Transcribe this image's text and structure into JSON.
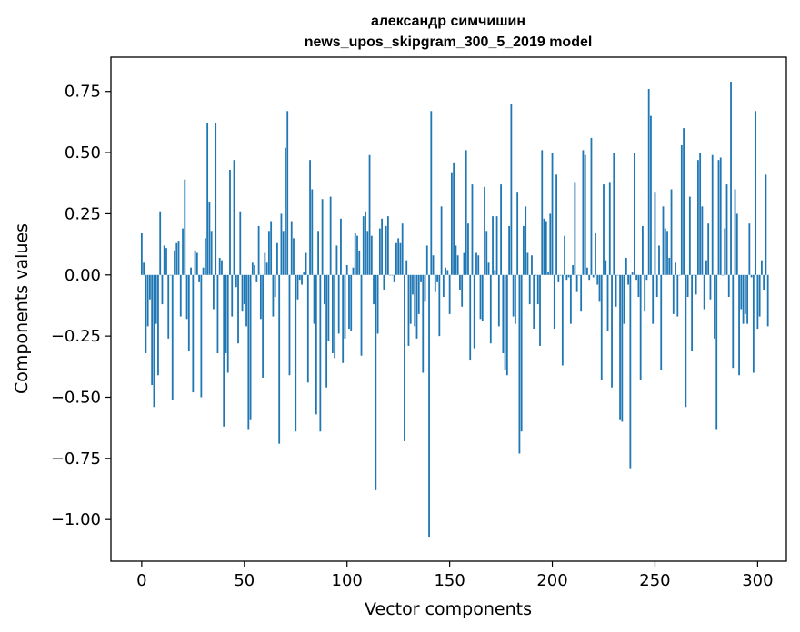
{
  "chart_data": {
    "type": "bar",
    "title": "александр симчишин",
    "subtitle": "news_upos_skipgram_300_5_2019 model",
    "xlabel": "Vector components",
    "ylabel": "Components values",
    "xlim": [
      -15,
      314
    ],
    "ylim": [
      -1.17,
      0.89
    ],
    "xticks": [
      0,
      50,
      100,
      150,
      200,
      250,
      300
    ],
    "yticks": [
      0.75,
      0.5,
      0.25,
      0.0,
      -0.25,
      -0.5,
      -0.75,
      -1.0
    ],
    "ytick_labels": [
      "0.75",
      "0.50",
      "0.25",
      "0.00",
      "−0.25",
      "−0.50",
      "−0.75",
      "−1.00"
    ],
    "xtick_labels": [
      "0",
      "50",
      "100",
      "150",
      "200",
      "250",
      "300"
    ],
    "bar_color": "#1f77b4",
    "values": [
      0.17,
      0.05,
      -0.32,
      -0.21,
      -0.1,
      -0.45,
      -0.54,
      -0.2,
      -0.41,
      0.26,
      -0.12,
      0.12,
      0.11,
      -0.26,
      0.0,
      -0.51,
      0.1,
      0.13,
      0.14,
      -0.17,
      0.19,
      0.39,
      -0.18,
      -0.31,
      0.03,
      -0.48,
      0.1,
      0.09,
      -0.03,
      -0.5,
      0.03,
      0.15,
      0.62,
      0.3,
      0.18,
      -0.14,
      0.62,
      -0.32,
      0.07,
      0.06,
      -0.62,
      -0.32,
      -0.4,
      0.43,
      -0.17,
      0.47,
      -0.05,
      -0.28,
      0.26,
      -0.15,
      -0.12,
      -0.21,
      -0.63,
      -0.59,
      0.05,
      0.04,
      -0.03,
      0.2,
      -0.18,
      -0.42,
      0.09,
      0.05,
      0.18,
      0.22,
      -0.17,
      -0.09,
      0.13,
      -0.69,
      0.25,
      0.18,
      0.52,
      0.67,
      -0.41,
      0.22,
      0.15,
      -0.64,
      -0.1,
      -0.02,
      -0.04,
      0.01,
      0.09,
      -0.44,
      0.47,
      0.35,
      -0.2,
      -0.57,
      0.18,
      -0.64,
      0.31,
      -0.12,
      -0.46,
      -0.27,
      0.32,
      -0.32,
      -0.34,
      0.12,
      -0.24,
      0.23,
      -0.36,
      -0.26,
      0.04,
      -0.22,
      -0.23,
      0.03,
      0.17,
      0.16,
      0.1,
      -0.33,
      0.24,
      0.26,
      0.18,
      0.49,
      0.16,
      -0.12,
      -0.88,
      -0.24,
      0.19,
      0.23,
      -0.06,
      0.2,
      0.24,
      0.0,
      0.0,
      -0.03,
      0.13,
      0.15,
      0.13,
      0.21,
      -0.68,
      0.06,
      -0.29,
      -0.2,
      -0.08,
      -0.21,
      -0.26,
      -0.16,
      -0.03,
      -0.4,
      -0.11,
      0.12,
      -1.07,
      0.67,
      0.08,
      -0.07,
      -0.03,
      -0.25,
      0.28,
      -0.09,
      0.03,
      0.02,
      -0.16,
      0.42,
      0.46,
      0.12,
      0.08,
      -0.06,
      -0.13,
      0.09,
      0.51,
      0.21,
      -0.35,
      0.37,
      -0.3,
      0.09,
      0.08,
      -0.18,
      -0.19,
      0.36,
      0.18,
      0.05,
      -0.28,
      0.24,
      0.02,
      0.24,
      -0.21,
      0.37,
      -0.32,
      -0.39,
      -0.41,
      0.2,
      0.7,
      -0.17,
      -0.2,
      0.34,
      -0.73,
      -0.64,
      0.2,
      0.28,
      0.09,
      -0.12,
      0.08,
      -0.22,
      0.0,
      -0.12,
      -0.29,
      0.51,
      0.23,
      0.22,
      0.01,
      0.25,
      0.5,
      -0.22,
      0.41,
      -0.03,
      0.0,
      -0.37,
      0.16,
      -0.02,
      -0.01,
      -0.2,
      0.04,
      0.38,
      -0.07,
      0.0,
      -0.15,
      0.51,
      0.49,
      0.03,
      -0.02,
      0.56,
      -0.01,
      0.17,
      -0.04,
      -0.11,
      -0.43,
      0.37,
      0.06,
      -0.23,
      0.38,
      -0.46,
      0.5,
      -0.13,
      0.0,
      -0.59,
      -0.6,
      -0.2,
      0.07,
      -0.04,
      -0.79,
      0.01,
      0.5,
      -0.02,
      -0.09,
      -0.43,
      0.2,
      -0.15,
      -0.02,
      0.76,
      0.65,
      -0.2,
      0.34,
      -0.09,
      0.12,
      -0.39,
      0.28,
      0.19,
      0.18,
      0.07,
      0.35,
      -0.16,
      0.05,
      -0.17,
      0.0,
      0.53,
      0.6,
      -0.54,
      -0.09,
      0.32,
      -0.31,
      0.0,
      -0.08,
      0.47,
      0.5,
      0.28,
      -0.14,
      0.06,
      0.21,
      -0.1,
      0.49,
      -0.26,
      -0.63,
      0.47,
      0.48,
      0.0,
      0.19,
      0.37,
      -0.09,
      0.79,
      -0.38,
      0.35,
      0.25,
      -0.41,
      -0.14,
      -0.2,
      -0.16,
      -0.2,
      0.21,
      -0.01,
      -0.4,
      0.67,
      -0.22,
      -0.17,
      0.06,
      -0.06,
      0.41,
      -0.21
    ]
  }
}
